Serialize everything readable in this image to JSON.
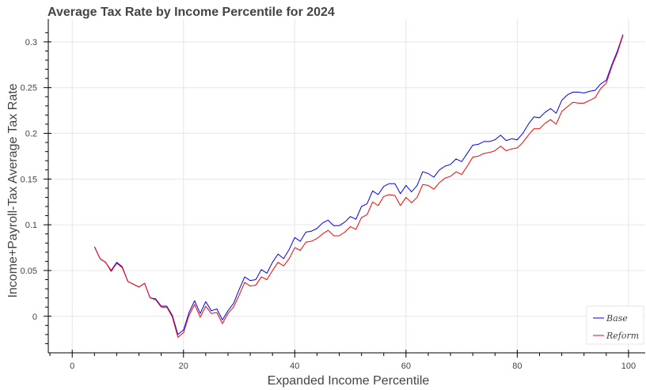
{
  "chart_data": {
    "type": "line",
    "title": "Average Tax Rate by Income Percentile for 2024",
    "xlabel": "Expanded Income Percentile",
    "ylabel": "Income+Payroll-Tax Average Tax Rate",
    "xlim": [
      -4.3,
      103
    ],
    "ylim": [
      -0.04,
      0.325
    ],
    "x_ticks": [
      0,
      20,
      40,
      60,
      80,
      100
    ],
    "y_ticks": [
      0,
      0.05,
      0.1,
      0.15,
      0.2,
      0.25,
      0.3
    ],
    "grid": true,
    "legend_position": "bottom-right",
    "x": [
      4,
      5,
      6,
      7,
      8,
      9,
      10,
      11,
      12,
      13,
      14,
      15,
      16,
      17,
      18,
      19,
      20,
      21,
      22,
      23,
      24,
      25,
      26,
      27,
      28,
      29,
      30,
      31,
      32,
      33,
      34,
      35,
      36,
      37,
      38,
      39,
      40,
      41,
      42,
      43,
      44,
      45,
      46,
      47,
      48,
      49,
      50,
      51,
      52,
      53,
      54,
      55,
      56,
      57,
      58,
      59,
      60,
      61,
      62,
      63,
      64,
      65,
      66,
      67,
      68,
      69,
      70,
      71,
      72,
      73,
      74,
      75,
      76,
      77,
      78,
      79,
      80,
      81,
      82,
      83,
      84,
      85,
      86,
      87,
      88,
      89,
      90,
      91,
      92,
      93,
      94,
      95,
      96,
      97,
      98,
      99
    ],
    "series": [
      {
        "name": "Base",
        "color": "#0000ff",
        "values": [
          0.076,
          0.063,
          0.059,
          0.05,
          0.059,
          0.054,
          0.038,
          0.035,
          0.032,
          0.036,
          0.02,
          0.019,
          0.011,
          0.011,
          0.001,
          -0.02,
          -0.015,
          0.004,
          0.017,
          0.003,
          0.016,
          0.006,
          0.008,
          -0.004,
          0.006,
          0.014,
          0.029,
          0.043,
          0.039,
          0.04,
          0.051,
          0.047,
          0.059,
          0.068,
          0.063,
          0.073,
          0.086,
          0.082,
          0.092,
          0.093,
          0.096,
          0.102,
          0.105,
          0.099,
          0.099,
          0.103,
          0.109,
          0.106,
          0.12,
          0.123,
          0.137,
          0.133,
          0.142,
          0.145,
          0.145,
          0.134,
          0.143,
          0.136,
          0.143,
          0.158,
          0.156,
          0.152,
          0.16,
          0.164,
          0.166,
          0.172,
          0.169,
          0.178,
          0.187,
          0.188,
          0.191,
          0.191,
          0.193,
          0.198,
          0.192,
          0.194,
          0.193,
          0.2,
          0.21,
          0.218,
          0.217,
          0.223,
          0.227,
          0.222,
          0.236,
          0.242,
          0.245,
          0.245,
          0.244,
          0.246,
          0.247,
          0.254,
          0.258,
          0.275,
          0.29,
          0.308
        ]
      },
      {
        "name": "Reform",
        "color": "#ff0000",
        "values": [
          0.076,
          0.063,
          0.059,
          0.049,
          0.058,
          0.053,
          0.038,
          0.035,
          0.032,
          0.036,
          0.02,
          0.018,
          0.01,
          0.01,
          -0.001,
          -0.023,
          -0.018,
          0.001,
          0.013,
          -0.001,
          0.011,
          0.003,
          0.004,
          -0.008,
          0.003,
          0.01,
          0.023,
          0.037,
          0.033,
          0.034,
          0.043,
          0.04,
          0.05,
          0.059,
          0.055,
          0.063,
          0.075,
          0.072,
          0.081,
          0.082,
          0.085,
          0.09,
          0.094,
          0.088,
          0.088,
          0.092,
          0.098,
          0.095,
          0.108,
          0.111,
          0.125,
          0.121,
          0.131,
          0.133,
          0.132,
          0.121,
          0.13,
          0.124,
          0.13,
          0.144,
          0.143,
          0.139,
          0.146,
          0.151,
          0.153,
          0.158,
          0.155,
          0.164,
          0.174,
          0.175,
          0.178,
          0.179,
          0.181,
          0.186,
          0.181,
          0.183,
          0.184,
          0.19,
          0.198,
          0.205,
          0.205,
          0.211,
          0.215,
          0.21,
          0.224,
          0.229,
          0.234,
          0.233,
          0.233,
          0.236,
          0.239,
          0.249,
          0.255,
          0.273,
          0.288,
          0.307
        ]
      }
    ]
  }
}
